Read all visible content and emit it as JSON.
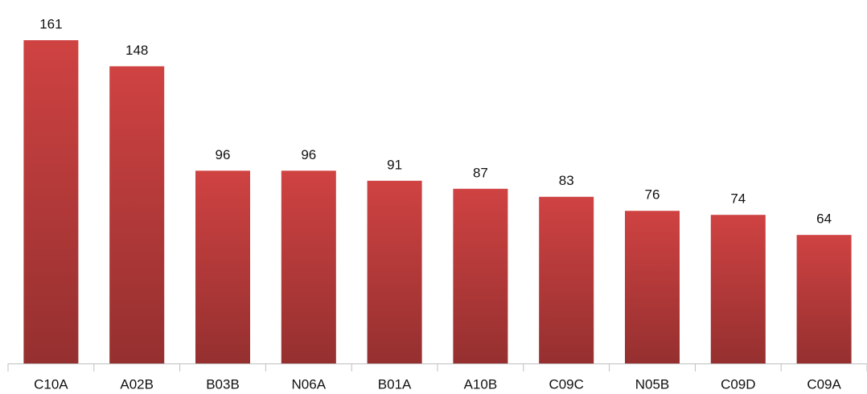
{
  "chart_data": {
    "type": "bar",
    "categories": [
      "C10A",
      "A02B",
      "B03B",
      "N06A",
      "B01A",
      "A10B",
      "C09C",
      "N05B",
      "C09D",
      "C09A"
    ],
    "values": [
      161,
      148,
      96,
      96,
      91,
      87,
      83,
      76,
      74,
      64
    ],
    "color": "#cf4242"
  }
}
